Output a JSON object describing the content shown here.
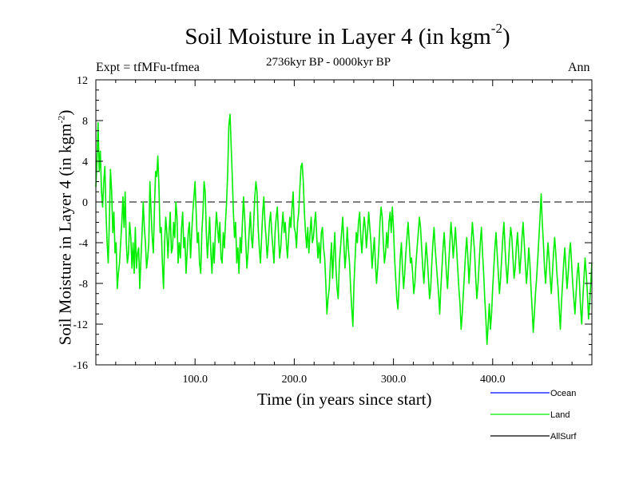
{
  "chart_data": {
    "type": "line",
    "title": "Soil Moisture in Layer 4 (in kgm",
    "title_sup": "-2",
    "title_close": ")",
    "subtitle_left": "Expt = tfMFu-tfmea",
    "subtitle_center": "2736kyr BP - 0000kyr BP",
    "subtitle_right": "Ann",
    "xlabel": "Time (in years since start)",
    "ylabel": "Soil Moisture in Layer 4 (in kgm",
    "ylabel_sup": "-2",
    "ylabel_close": ")",
    "xlim": [
      0,
      500
    ],
    "ylim": [
      -16,
      12
    ],
    "x_ticks": [
      100,
      200,
      300,
      400
    ],
    "x_tick_labels": [
      "100.0",
      "200.0",
      "300.0",
      "400.0"
    ],
    "y_ticks": [
      -16,
      -12,
      -8,
      -4,
      0,
      4,
      8,
      12
    ],
    "y_tick_labels": [
      "-16",
      "-12",
      "-8",
      "-4",
      "0",
      "4",
      "8",
      "12"
    ],
    "zero_line": true,
    "series": [
      {
        "name": "Ocean",
        "color": "#0000ff",
        "values": []
      },
      {
        "name": "Land",
        "color": "#00ee00",
        "values": [
          1.5,
          4.0,
          7.8,
          3.0,
          5.0,
          1.0,
          -0.5,
          2.0,
          3.5,
          -1.0,
          -4.0,
          -6.0,
          -2.0,
          3.2,
          1.0,
          -3.0,
          -1.0,
          -5.0,
          -4.0,
          -8.5,
          -7.0,
          -6.0,
          -4.0,
          -2.0,
          0.5,
          -2.5,
          1.0,
          -4.0,
          -6.0,
          -5.0,
          -2.0,
          -3.5,
          -6.5,
          -4.0,
          -7.0,
          -2.5,
          -6.5,
          -5.0,
          -4.5,
          -8.5,
          -5.5,
          -3.0,
          0.0,
          -2.5,
          -4.0,
          -6.5,
          -5.5,
          -4.0,
          2.0,
          -1.0,
          -3.5,
          -5.0,
          -0.5,
          3.0,
          2.5,
          4.5,
          1.5,
          -3.0,
          -2.5,
          -6.0,
          -8.5,
          -4.0,
          -1.5,
          -3.0,
          -5.5,
          -3.0,
          -1.0,
          -5.0,
          -4.5,
          -2.0,
          -3.5,
          0.0,
          -1.5,
          -6.0,
          -4.0,
          -5.5,
          -2.5,
          -1.0,
          -4.5,
          -3.5,
          -7.0,
          -5.0,
          -3.0,
          -2.0,
          -5.5,
          -3.0,
          -1.0,
          0.5,
          2.0,
          -1.0,
          -4.0,
          -3.0,
          -6.0,
          -7.0,
          -3.0,
          -1.0,
          2.0,
          1.0,
          -3.0,
          -5.5,
          -3.5,
          -1.5,
          -5.0,
          -7.0,
          -4.0,
          -6.0,
          -3.0,
          -1.0,
          -2.5,
          -4.0,
          -2.0,
          -5.5,
          -6.0,
          -3.0,
          -4.5,
          -2.0,
          0.0,
          3.0,
          7.5,
          8.6,
          5.5,
          2.5,
          -1.0,
          -3.5,
          -2.0,
          -6.0,
          -4.5,
          -7.0,
          -3.5,
          -5.0,
          -2.0,
          0.5,
          -1.5,
          -4.0,
          -6.5,
          -5.0,
          -3.0,
          -1.0,
          -3.5,
          -4.5,
          -2.0,
          0.5,
          2.0,
          1.0,
          -2.5,
          -4.5,
          -6.0,
          -3.5,
          -1.0,
          0.5,
          -2.0,
          -3.5,
          -5.5,
          -4.0,
          -2.0,
          -1.0,
          -3.0,
          -4.5,
          -6.0,
          -3.0,
          -1.5,
          -0.5,
          -3.0,
          -5.5,
          -4.5,
          -2.5,
          -1.0,
          -3.0,
          -2.0,
          -4.0,
          -5.5,
          -3.5,
          -1.5,
          -2.5,
          -0.5,
          1.0,
          -2.5,
          -3.0,
          -4.5,
          -2.0,
          -1.0,
          1.5,
          3.5,
          3.8,
          2.0,
          -1.0,
          -3.0,
          -4.5,
          -2.5,
          -5.0,
          -3.0,
          -1.5,
          -4.0,
          -3.5,
          -2.0,
          -1.0,
          -3.5,
          -5.5,
          -4.0,
          -6.0,
          -3.0,
          -2.5,
          -4.5,
          -5.5,
          -8.0,
          -11.0,
          -9.5,
          -8.5,
          -6.0,
          -4.0,
          -7.5,
          -5.0,
          -3.0,
          -6.5,
          -8.5,
          -9.5,
          -6.0,
          -4.5,
          -3.0,
          -1.5,
          -4.0,
          -6.5,
          -5.0,
          -2.5,
          -4.5,
          -6.0,
          -8.5,
          -10.5,
          -12.2,
          -8.0,
          -5.5,
          -3.0,
          -4.0,
          -2.0,
          -1.0,
          -3.5,
          -5.0,
          -3.0,
          -1.5,
          -2.5,
          -4.5,
          -3.0,
          -1.0,
          -2.5,
          -4.0,
          -6.5,
          -5.0,
          -3.5,
          -6.0,
          -8.0,
          -6.5,
          -4.5,
          -2.0,
          -0.5,
          -1.5,
          -4.0,
          -6.0,
          -5.0,
          -3.0,
          -4.5,
          -2.0,
          -1.0,
          -3.0,
          -0.5,
          -2.5,
          -5.5,
          -7.5,
          -9.5,
          -10.5,
          -8.0,
          -5.5,
          -4.0,
          -6.5,
          -8.5,
          -7.0,
          -5.0,
          -3.5,
          -2.0,
          -4.0,
          -6.0,
          -5.5,
          -7.0,
          -9.0,
          -8.0,
          -6.0,
          -4.5,
          -3.0,
          -1.5,
          -2.5,
          -4.5,
          -6.5,
          -8.0,
          -6.0,
          -4.0,
          -5.5,
          -7.5,
          -9.5,
          -8.5,
          -6.0,
          -4.0,
          -2.5,
          -4.5,
          -6.0,
          -7.5,
          -9.0,
          -11.0,
          -8.5,
          -6.5,
          -4.5,
          -3.0,
          -5.0,
          -7.0,
          -8.5,
          -6.0,
          -4.0,
          -2.0,
          -3.5,
          -5.5,
          -4.0,
          -2.5,
          -4.5,
          -6.5,
          -8.5,
          -10.0,
          -12.5,
          -11.0,
          -9.0,
          -7.0,
          -5.0,
          -3.5,
          -5.5,
          -8.0,
          -6.0,
          -4.0,
          -2.0,
          -3.5,
          -5.0,
          -7.5,
          -9.5,
          -8.0,
          -6.0,
          -4.0,
          -2.5,
          -5.0,
          -7.0,
          -9.5,
          -11.5,
          -14.0,
          -12.0,
          -10.0,
          -12.5,
          -11.0,
          -8.5,
          -6.5,
          -4.5,
          -3.0,
          -5.0,
          -7.0,
          -9.0,
          -7.5,
          -5.5,
          -3.5,
          -2.0,
          -4.5,
          -6.5,
          -8.0,
          -6.0,
          -4.0,
          -2.5,
          -3.5,
          -5.5,
          -7.5,
          -6.5,
          -4.5,
          -3.0,
          -5.0,
          -7.0,
          -5.5,
          -3.5,
          -2.0,
          -4.0,
          -6.0,
          -8.0,
          -6.5,
          -4.5,
          -6.0,
          -8.5,
          -10.5,
          -12.8,
          -11.0,
          -9.0,
          -7.5,
          -5.5,
          -3.5,
          -1.5,
          0.8,
          -2.0,
          -4.0,
          -6.5,
          -8.0,
          -6.0,
          -4.0,
          -5.5,
          -7.5,
          -9.0,
          -7.0,
          -5.0,
          -3.5,
          -5.0,
          -7.0,
          -8.5,
          -10.5,
          -12.5,
          -10.0,
          -8.0,
          -6.0,
          -4.5,
          -6.5,
          -8.5,
          -7.0,
          -5.0,
          -4.0,
          -6.0,
          -8.0,
          -9.5,
          -11.0,
          -9.0,
          -7.0,
          -6.0,
          -8.0,
          -10.5,
          -12.0,
          -9.5,
          -7.5,
          -5.5,
          -7.0,
          -9.0,
          -11.5,
          -10.0,
          -8.0,
          -6.0
        ]
      },
      {
        "name": "AllSurf",
        "color": "#000000",
        "values": []
      }
    ],
    "legend_position": "bottom-right"
  }
}
